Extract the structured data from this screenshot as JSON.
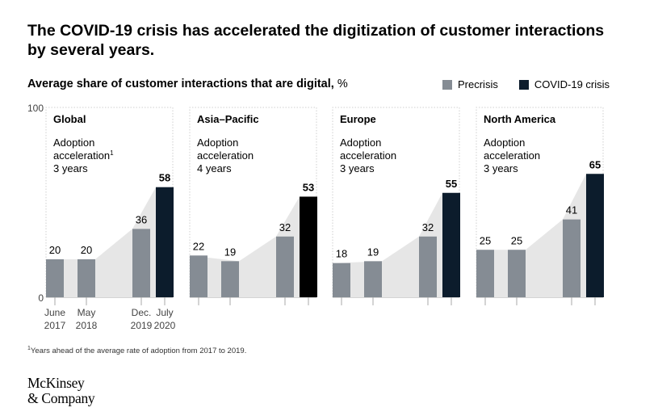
{
  "headline": "The COVID-19 crisis has accelerated the digitization of customer interactions by several years.",
  "subtitle": {
    "text": "Average share of customer interactions that are digital,",
    "unit": "%"
  },
  "legend": [
    {
      "label": "Precrisis",
      "color": "#858c94"
    },
    {
      "label": "COVID-19 crisis",
      "color": "#0c1c2c"
    }
  ],
  "footnote": {
    "marker": "1",
    "text": "Years ahead of the average rate of adoption from 2017 to 2019."
  },
  "logo": {
    "line1": "McKinsey",
    "line2": "& Company"
  },
  "chart_data": {
    "type": "bar",
    "ylim": [
      0,
      100
    ],
    "yticks": [
      "0",
      "100"
    ],
    "categories": [
      {
        "line1": "June",
        "line2": "2017"
      },
      {
        "line1": "May",
        "line2": "2018"
      },
      {
        "line1": "Dec.",
        "line2": "2019"
      },
      {
        "line1": "July",
        "line2": "2020"
      }
    ],
    "panels": [
      {
        "region": "Global",
        "note": [
          "Adoption",
          "acceleration",
          "3 years"
        ],
        "note_marker": "1",
        "values": [
          20,
          20,
          36,
          58
        ],
        "bold_last": true,
        "last_color": "#0c1c2c"
      },
      {
        "region": "Asia–Pacific",
        "note": [
          "Adoption",
          "acceleration",
          "4 years"
        ],
        "values": [
          22,
          19,
          32,
          53
        ],
        "bold_last": true,
        "last_color": "#000000"
      },
      {
        "region": "Europe",
        "note": [
          "Adoption",
          "acceleration",
          "3 years"
        ],
        "values": [
          18,
          19,
          32,
          55
        ],
        "bold_last": true,
        "last_color": "#0c1c2c"
      },
      {
        "region": "North America",
        "note": [
          "Adoption",
          "acceleration",
          "3 years"
        ],
        "values": [
          25,
          25,
          41,
          65
        ],
        "bold_last": true,
        "last_color": "#0c1c2c"
      }
    ],
    "colors": {
      "precrisis": "#858c94",
      "crisis": "#0c1c2c",
      "area": "#e6e6e6",
      "border": "#cfcfcf"
    }
  }
}
